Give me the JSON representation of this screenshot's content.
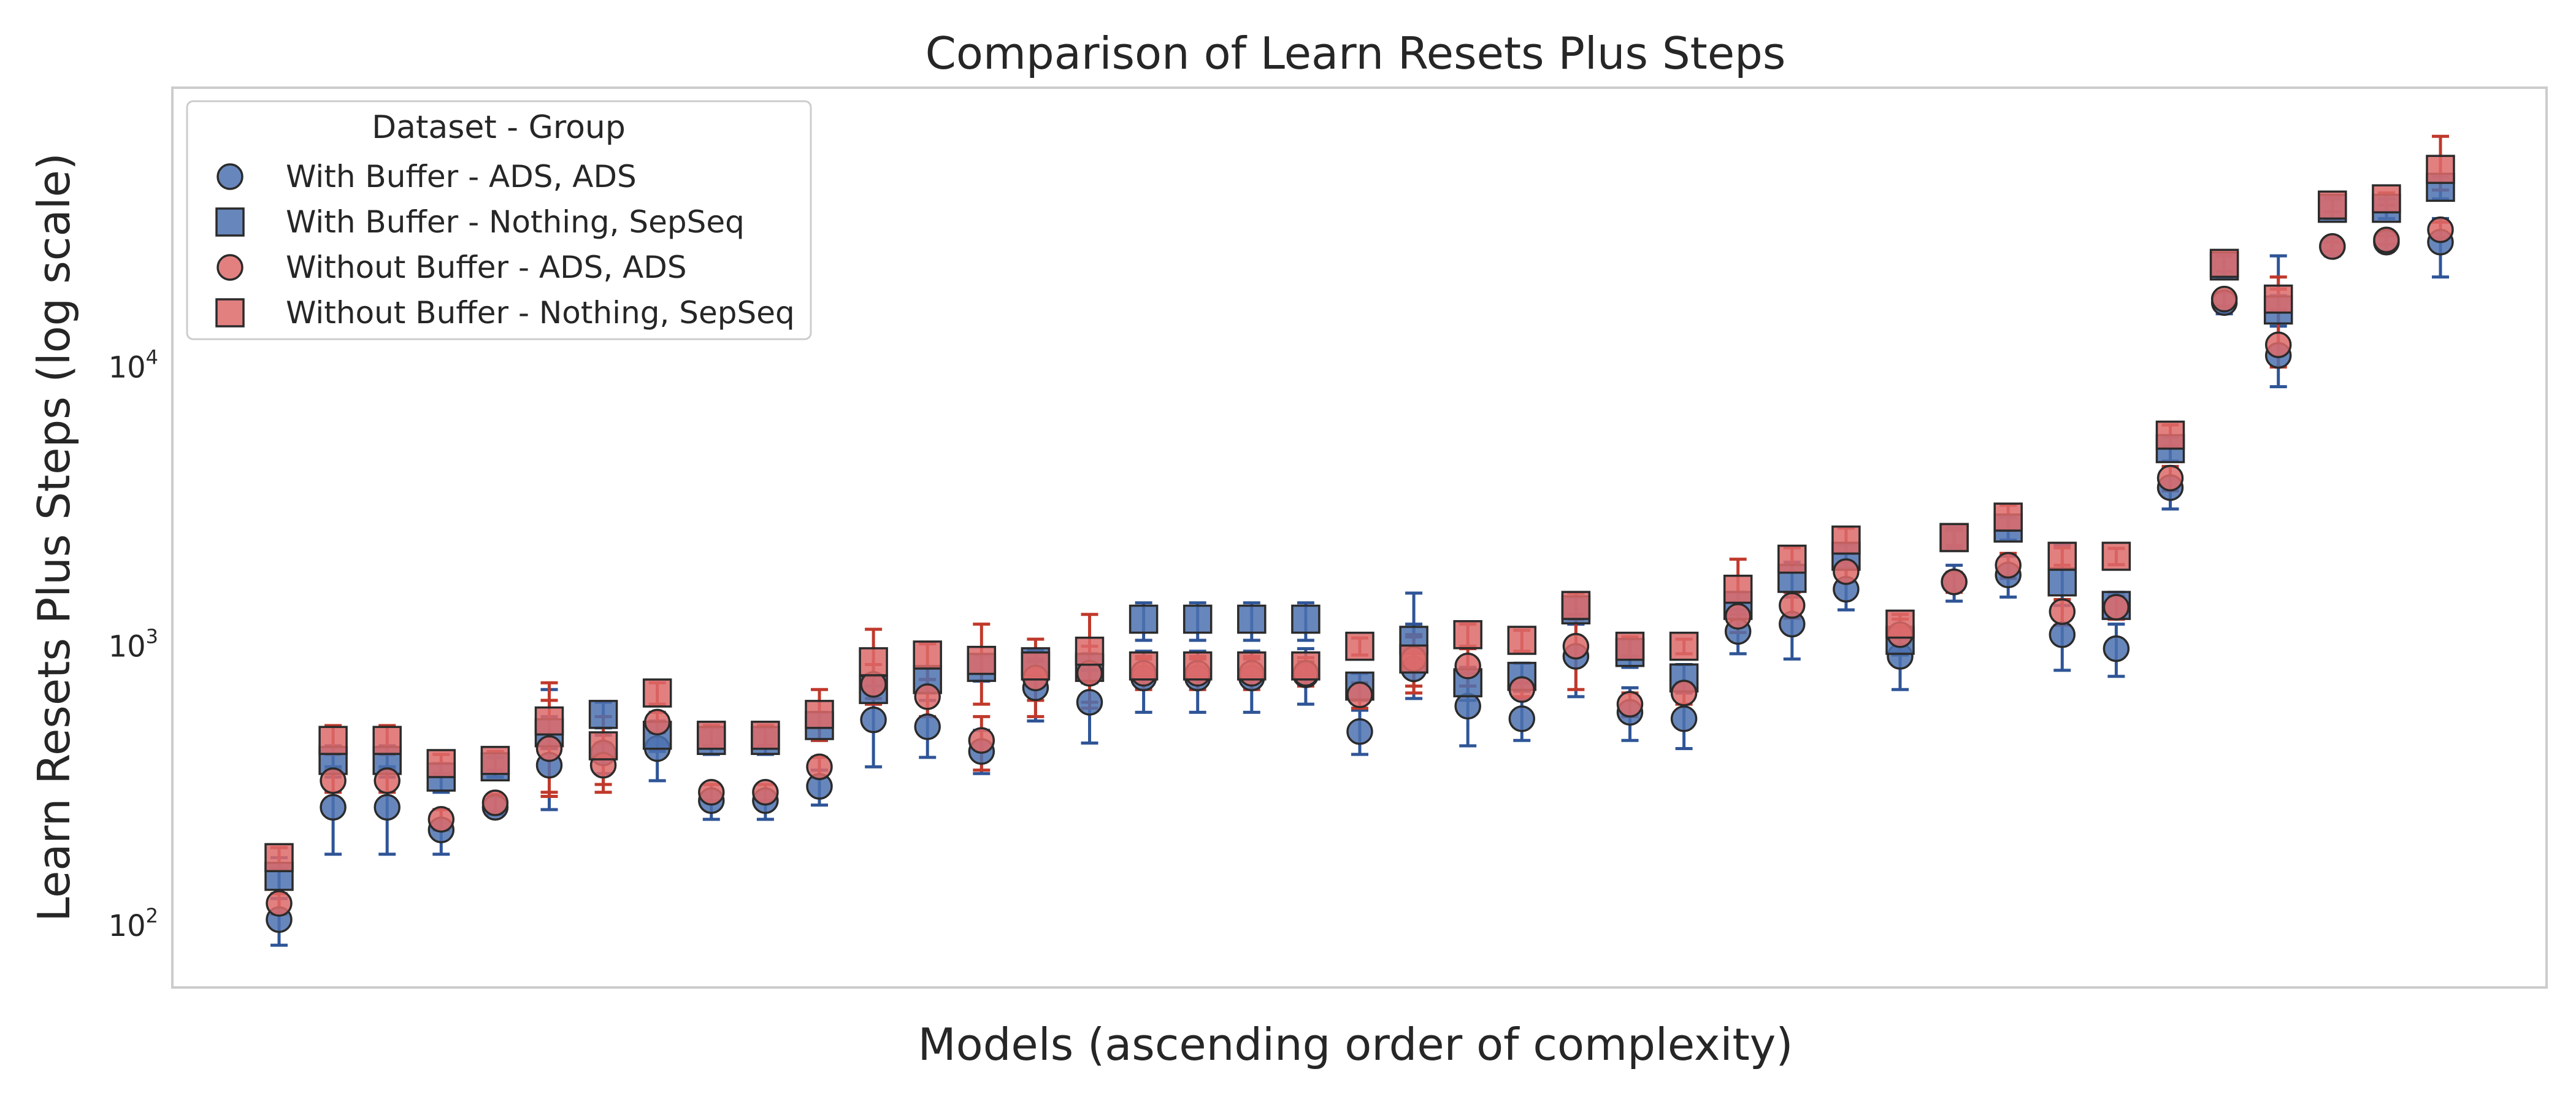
{
  "chart_data": {
    "type": "scatter",
    "title": "Comparison of Learn Resets Plus Steps",
    "xlabel": "Models (ascending order of complexity)",
    "ylabel": "Learn Resets Plus Steps (log scale)",
    "yscale": "log",
    "ylim": [
      60,
      100000
    ],
    "yticks": [
      {
        "value": 100,
        "base": "10",
        "exp": "2"
      },
      {
        "value": 1000,
        "base": "10",
        "exp": "3"
      },
      {
        "value": 10000,
        "base": "10",
        "exp": "4"
      }
    ],
    "x_positions": 41,
    "grid": false,
    "legend": {
      "title": "Dataset - Group",
      "placement": "top-left"
    },
    "colors": {
      "blue": "#4c72b0",
      "red": "#dd6a6a",
      "blue_err": "#2f5597",
      "red_err": "#c0392b"
    },
    "series": [
      {
        "name": "With Buffer - ADS, ADS",
        "marker": "circle",
        "color": "blue",
        "values": [
          105,
          265,
          265,
          220,
          265,
          375,
          415,
          430,
          280,
          280,
          315,
          545,
          515,
          420,
          710,
          630,
          770,
          770,
          770,
          790,
          495,
          830,
          610,
          550,
          920,
          580,
          550,
          1130,
          1200,
          1600,
          920,
          1700,
          1800,
          1100,
          980,
          3700,
          17000,
          11000,
          27000,
          28000,
          28000
        ],
        "err_low": [
          85,
          180,
          180,
          180,
          250,
          260,
          350,
          330,
          240,
          240,
          270,
          370,
          400,
          350,
          540,
          450,
          580,
          580,
          580,
          620,
          410,
          650,
          440,
          460,
          660,
          460,
          430,
          940,
          900,
          1350,
          700,
          1450,
          1500,
          820,
          780,
          3100,
          15500,
          8500,
          25000,
          26000,
          21000
        ],
        "err_high": [
          125,
          370,
          370,
          260,
          290,
          700,
          480,
          540,
          320,
          320,
          360,
          720,
          640,
          500,
          880,
          820,
          960,
          960,
          960,
          980,
          590,
          1550,
          800,
          650,
          1200,
          710,
          680,
          1350,
          1500,
          1900,
          1250,
          1950,
          2100,
          1400,
          1200,
          4400,
          18500,
          25000,
          29000,
          30500,
          34000
        ]
      },
      {
        "name": "With Buffer - Nothing, SepSeq",
        "marker": "square",
        "color": "blue",
        "values": [
          150,
          390,
          390,
          340,
          370,
          490,
          570,
          480,
          460,
          460,
          520,
          700,
          760,
          840,
          880,
          840,
          1250,
          1250,
          1250,
          1250,
          720,
          1050,
          740,
          780,
          1350,
          950,
          770,
          1400,
          1750,
          2100,
          1050,
          2450,
          2650,
          1700,
          1400,
          5100,
          23000,
          16000,
          37000,
          37000,
          44000
        ],
        "err_low": [
          125,
          340,
          340,
          300,
          340,
          430,
          510,
          420,
          410,
          410,
          460,
          620,
          680,
          750,
          790,
          740,
          1050,
          1050,
          1050,
          1050,
          640,
          900,
          640,
          690,
          1200,
          840,
          680,
          1250,
          1500,
          1900,
          930,
          2250,
          2400,
          1400,
          1250,
          4600,
          21000,
          14000,
          34000,
          34000,
          40000
        ],
        "err_high": [
          175,
          440,
          440,
          380,
          400,
          560,
          630,
          540,
          510,
          510,
          580,
          790,
          840,
          930,
          970,
          940,
          1430,
          1430,
          1430,
          1430,
          800,
          1200,
          840,
          870,
          1500,
          1060,
          860,
          1560,
          2000,
          2320,
          1180,
          2650,
          2900,
          2300,
          1560,
          5600,
          25000,
          18000,
          40000,
          40000,
          48000
        ]
      },
      {
        "name": "Without Buffer - ADS, ADS",
        "marker": "circle",
        "color": "red",
        "values": [
          120,
          330,
          330,
          240,
          275,
          430,
          375,
          535,
          300,
          300,
          370,
          730,
          660,
          460,
          770,
          800,
          800,
          800,
          800,
          800,
          670,
          900,
          850,
          700,
          1000,
          620,
          680,
          1280,
          1400,
          1850,
          1100,
          1700,
          1950,
          1330,
          1380,
          4000,
          17500,
          12000,
          27000,
          28500,
          31000
        ],
        "err_low": [
          110,
          300,
          300,
          220,
          255,
          290,
          300,
          490,
          280,
          280,
          340,
          620,
          560,
          360,
          560,
          600,
          700,
          700,
          700,
          720,
          600,
          680,
          720,
          660,
          700,
          560,
          620,
          1120,
          1260,
          1700,
          950,
          1560,
          1750,
          1190,
          1250,
          3600,
          16500,
          10000,
          26000,
          27500,
          29000
        ],
        "err_high": [
          130,
          360,
          360,
          260,
          295,
          640,
          450,
          580,
          320,
          320,
          400,
          860,
          760,
          560,
          900,
          1000,
          900,
          900,
          900,
          880,
          740,
          1100,
          980,
          740,
          1300,
          680,
          740,
          1440,
          1560,
          2000,
          1250,
          1840,
          2150,
          1470,
          1510,
          4400,
          18500,
          21000,
          28000,
          29500,
          33000
        ]
      },
      {
        "name": "Without Buffer - Nothing, SepSeq",
        "marker": "square",
        "color": "red",
        "values": [
          175,
          460,
          460,
          380,
          390,
          540,
          440,
          680,
          480,
          480,
          570,
          880,
          930,
          890,
          850,
          960,
          850,
          850,
          850,
          850,
          1000,
          900,
          1100,
          1050,
          1400,
          1000,
          1000,
          1600,
          2050,
          2400,
          1200,
          2450,
          2900,
          2100,
          2100,
          5700,
          23500,
          17500,
          38000,
          40000,
          51000
        ],
        "err_low": [
          160,
          410,
          410,
          350,
          360,
          300,
          320,
          620,
          440,
          440,
          460,
          650,
          760,
          620,
          640,
          630,
          780,
          780,
          780,
          790,
          930,
          720,
          1000,
          960,
          1250,
          920,
          940,
          1300,
          1850,
          2150,
          1100,
          2300,
          2600,
          1950,
          1960,
          5200,
          22000,
          16000,
          36000,
          38000,
          43000
        ],
        "err_high": [
          190,
          520,
          520,
          410,
          420,
          740,
          560,
          740,
          520,
          520,
          700,
          1150,
          1020,
          1200,
          1060,
          1300,
          920,
          920,
          920,
          910,
          1070,
          1080,
          1200,
          1140,
          1550,
          1080,
          1060,
          2050,
          2250,
          2650,
          1300,
          2600,
          3200,
          2250,
          2240,
          6200,
          25000,
          19000,
          41000,
          42000,
          67000
        ]
      }
    ]
  }
}
